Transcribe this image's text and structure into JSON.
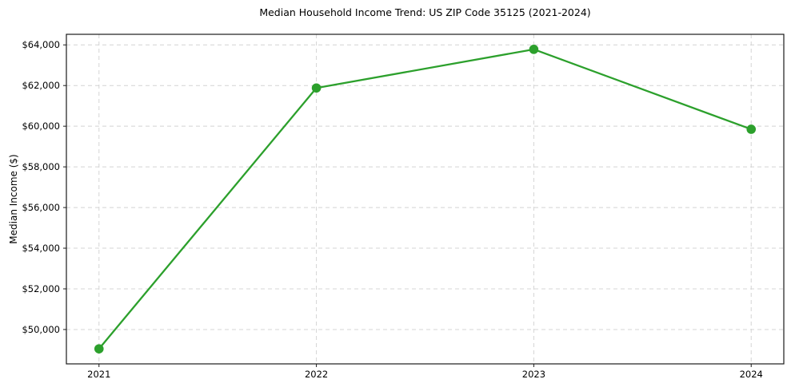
{
  "chart_data": {
    "type": "line",
    "title": "Median Household Income Trend: US ZIP Code 35125 (2021-2024)",
    "xlabel": "",
    "ylabel": "Median Income ($)",
    "x": [
      2021,
      2022,
      2023,
      2024
    ],
    "x_tick_labels": [
      "2021",
      "2022",
      "2023",
      "2024"
    ],
    "series": [
      {
        "name": "Median Household Income",
        "values": [
          49050,
          61880,
          63780,
          59850
        ]
      }
    ],
    "y_ticks": [
      {
        "value": 50000,
        "label": "$50,000"
      },
      {
        "value": 52000,
        "label": "$52,000"
      },
      {
        "value": 54000,
        "label": "$54,000"
      },
      {
        "value": 56000,
        "label": "$56,000"
      },
      {
        "value": 58000,
        "label": "$58,000"
      },
      {
        "value": 60000,
        "label": "$60,000"
      },
      {
        "value": 62000,
        "label": "$62,000"
      },
      {
        "value": 64000,
        "label": "$64,000"
      }
    ],
    "xlim": [
      2020.85,
      2024.15
    ],
    "ylim": [
      48310,
      64520
    ],
    "grid": true,
    "grid_style": "dashed",
    "legend": "none",
    "colors": {
      "line": "#2ca02c",
      "marker": "#2ca02c",
      "grid": "#d4d4d4",
      "spine": "#1a1a1a",
      "background": "#ffffff",
      "text": "#000000"
    }
  }
}
